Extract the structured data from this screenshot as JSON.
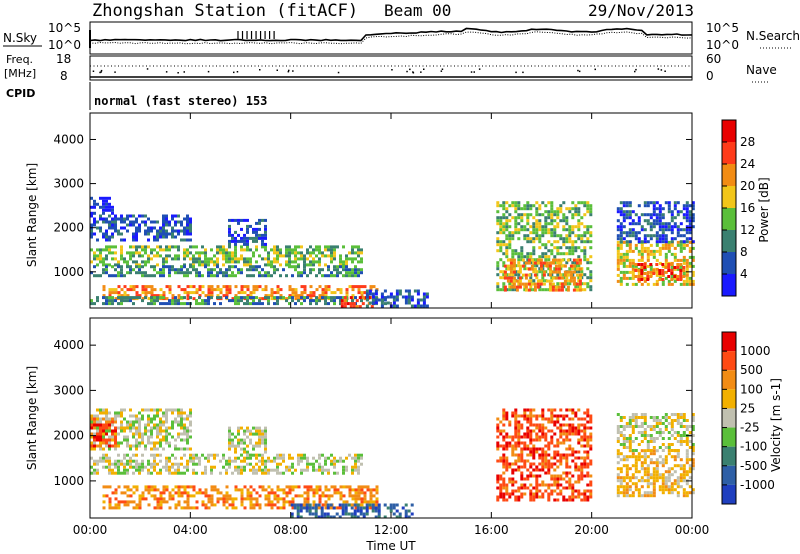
{
  "header": {
    "station": "Zhongshan Station (fitACF)",
    "beam": "Beam 00",
    "date": "29/Nov/2013"
  },
  "nsky_panel": {
    "left_label": "N.Sky",
    "right_label": "N.Search",
    "tick_top": "10^5",
    "tick_bottom": "10^0",
    "right_tick_top": "10^5",
    "right_tick_bottom": "10^0"
  },
  "freq_panel": {
    "left_label_1": "Freq.",
    "left_label_2": "[MHz]",
    "tick_top": "18",
    "tick_bottom": "8",
    "right_label": "Nave",
    "right_tick_top": "60",
    "right_tick_bottom": "0"
  },
  "cpid": {
    "label": "CPID",
    "text": "normal (fast stereo) 153"
  },
  "chart_data": [
    {
      "type": "heatmap",
      "title": "Power",
      "xlabel": "Time UT",
      "ylabel": "Slant Range [km]",
      "colorbar_label": "Power [dB]",
      "x_ticks": [
        "00:00",
        "04:00",
        "08:00",
        "12:00",
        "16:00",
        "20:00",
        "00:00"
      ],
      "y_ticks": [
        "1000",
        "2000",
        "3000",
        "4000"
      ],
      "ylim": [
        180,
        4600
      ],
      "xlim_hours": [
        0,
        24
      ],
      "colorbar_ticks": [
        "4",
        "8",
        "12",
        "16",
        "20",
        "24",
        "28"
      ],
      "colorbar_colors": [
        "#1a1aff",
        "#1f4fb4",
        "#3a8070",
        "#5abf3a",
        "#f2c61a",
        "#f28c14",
        "#ff3b1a",
        "#e80000"
      ],
      "bands": [
        {
          "t0": 0.0,
          "t1": 10.8,
          "r0": 1150,
          "r1": 1600,
          "level": 3
        },
        {
          "t0": 0.0,
          "t1": 10.8,
          "r0": 900,
          "r1": 1150,
          "level": 2
        },
        {
          "t0": 0.0,
          "t1": 4.0,
          "r0": 1700,
          "r1": 2300,
          "level": 1
        },
        {
          "t0": 0.0,
          "t1": 1.0,
          "r0": 2300,
          "r1": 2700,
          "level": 0
        },
        {
          "t0": 0.5,
          "t1": 11.5,
          "r0": 400,
          "r1": 700,
          "level": 5
        },
        {
          "t0": 0.0,
          "t1": 11.8,
          "r0": 250,
          "r1": 450,
          "level": 2
        },
        {
          "t0": 10.0,
          "t1": 11.2,
          "r0": 200,
          "r1": 450,
          "level": 6
        },
        {
          "t0": 11.0,
          "t1": 13.5,
          "r0": 200,
          "r1": 600,
          "level": 1
        },
        {
          "t0": 16.2,
          "t1": 20.0,
          "r0": 600,
          "r1": 2600,
          "level": 3
        },
        {
          "t0": 16.5,
          "t1": 19.5,
          "r0": 600,
          "r1": 1300,
          "level": 5
        },
        {
          "t0": 21.0,
          "t1": 24.0,
          "r0": 700,
          "r1": 1700,
          "level": 4
        },
        {
          "t0": 21.7,
          "t1": 23.7,
          "r0": 800,
          "r1": 1200,
          "level": 6
        },
        {
          "t0": 21.0,
          "t1": 24.0,
          "r0": 1700,
          "r1": 2600,
          "level": 1
        },
        {
          "t0": 5.5,
          "t1": 7.0,
          "r0": 1600,
          "r1": 2200,
          "level": 1
        }
      ]
    },
    {
      "type": "heatmap",
      "title": "Velocity",
      "xlabel": "Time UT",
      "ylabel": "Slant Range [km]",
      "colorbar_label": "Velocity [m s-1]",
      "x_ticks": [
        "00:00",
        "04:00",
        "08:00",
        "12:00",
        "16:00",
        "20:00",
        "00:00"
      ],
      "y_ticks": [
        "1000",
        "2000",
        "3000",
        "4000"
      ],
      "ylim": [
        180,
        4600
      ],
      "xlim_hours": [
        0,
        24
      ],
      "colorbar_ticks": [
        "1000",
        "500",
        "100",
        "25",
        "-25",
        "-100",
        "-500",
        "-1000"
      ],
      "colorbar_colors": [
        "#1f3fbf",
        "#2e5fa6",
        "#3a8070",
        "#5abf3a",
        "#c0c0b0",
        "#f2b000",
        "#f28c14",
        "#ff4a14",
        "#e80000"
      ],
      "bands": [
        {
          "t0": 0.0,
          "t1": 10.8,
          "r0": 1150,
          "r1": 1600,
          "level": 4
        },
        {
          "t0": 0.0,
          "t1": 4.0,
          "r0": 1700,
          "r1": 2600,
          "level": 4
        },
        {
          "t0": 0.0,
          "t1": 1.0,
          "r0": 1800,
          "r1": 2400,
          "level": 7
        },
        {
          "t0": 0.5,
          "t1": 11.5,
          "r0": 400,
          "r1": 900,
          "level": 6
        },
        {
          "t0": 8.0,
          "t1": 12.8,
          "r0": 200,
          "r1": 500,
          "level": 1
        },
        {
          "t0": 16.2,
          "t1": 20.0,
          "r0": 600,
          "r1": 2600,
          "level": 7
        },
        {
          "t0": 21.0,
          "t1": 24.0,
          "r0": 700,
          "r1": 1700,
          "level": 5
        },
        {
          "t0": 21.0,
          "t1": 24.0,
          "r0": 1700,
          "r1": 2500,
          "level": 4
        },
        {
          "t0": 5.5,
          "t1": 7.0,
          "r0": 1600,
          "r1": 2200,
          "level": 4
        }
      ]
    }
  ]
}
